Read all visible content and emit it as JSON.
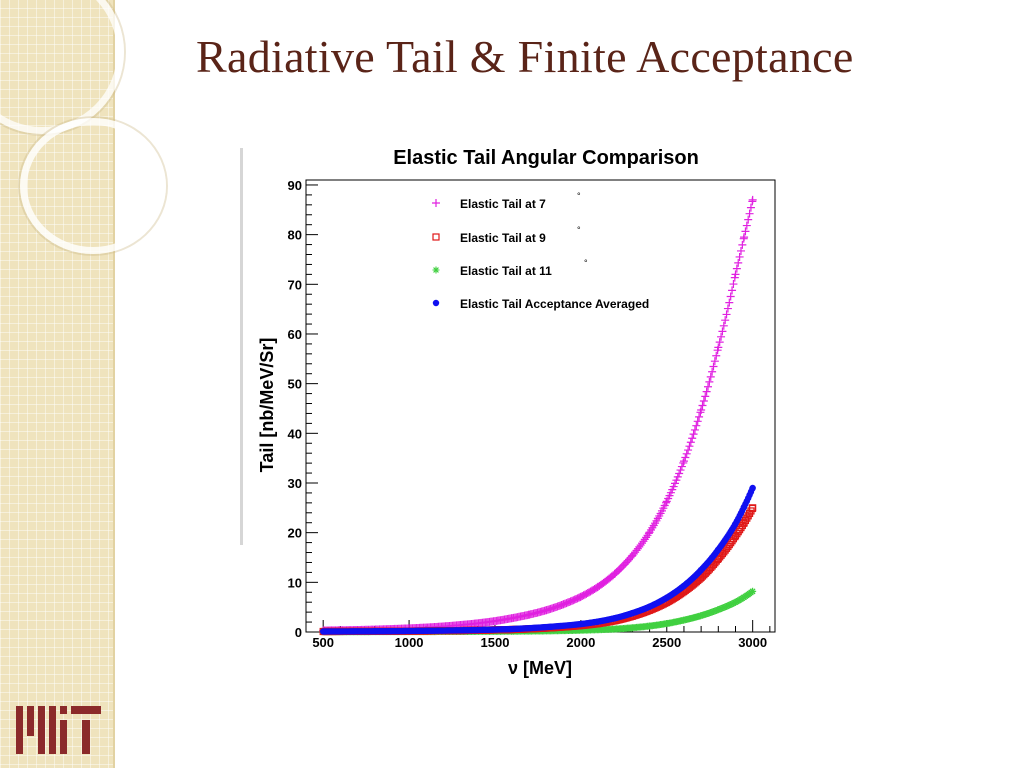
{
  "slide": {
    "title": "Radiative Tail & Finite Acceptance",
    "logo_text": "MIT"
  },
  "colors": {
    "title": "#5a2418",
    "stripe": "#efe3bd",
    "logo": "#8b2a2a"
  },
  "chart_data": {
    "type": "scatter",
    "title": "Elastic Tail Angular Comparison",
    "xlabel": "ν [MeV]",
    "ylabel": "Tail [nb/MeV/Sr]",
    "xlim": [
      400,
      3130
    ],
    "ylim": [
      0,
      91
    ],
    "xticks": [
      500,
      1000,
      1500,
      2000,
      2500,
      3000
    ],
    "yticks": [
      0,
      10,
      20,
      30,
      40,
      50,
      60,
      70,
      80,
      90
    ],
    "grid": false,
    "legend_position": "top-center",
    "series": [
      {
        "name": "Elastic Tail at 7°",
        "legend_text": "Elastic Tail at 7",
        "marker": "plus",
        "color": "#e020e0",
        "x": [
          500,
          700,
          900,
          1100,
          1300,
          1500,
          1600,
          1700,
          1800,
          1900,
          2000,
          2100,
          2200,
          2300,
          2400,
          2500,
          2600,
          2700,
          2800,
          2900,
          2950,
          3000
        ],
        "y": [
          0.3,
          0.4,
          0.6,
          0.9,
          1.4,
          2.2,
          2.8,
          3.5,
          4.4,
          5.6,
          7.1,
          9.1,
          11.8,
          15.4,
          20.1,
          26.3,
          34.4,
          44.7,
          57.3,
          72.0,
          79.5,
          87.0
        ]
      },
      {
        "name": "Elastic Tail at 9°",
        "legend_text": "Elastic Tail at 9",
        "marker": "open-square",
        "color": "#e01818",
        "x": [
          500,
          800,
          1100,
          1400,
          1600,
          1800,
          2000,
          2100,
          2200,
          2300,
          2400,
          2500,
          2600,
          2700,
          2800,
          2900,
          2950,
          3000
        ],
        "y": [
          0.1,
          0.15,
          0.2,
          0.35,
          0.5,
          0.8,
          1.3,
          1.7,
          2.3,
          3.2,
          4.4,
          6.0,
          8.2,
          11.0,
          14.8,
          19.4,
          22.0,
          25.0
        ]
      },
      {
        "name": "Elastic Tail at 11°",
        "legend_text": "Elastic Tail at 11",
        "marker": "asterisk",
        "color": "#40d040",
        "x": [
          500,
          900,
          1300,
          1600,
          1800,
          2000,
          2200,
          2300,
          2400,
          2500,
          2600,
          2700,
          2800,
          2900,
          2950,
          3000
        ],
        "y": [
          0.05,
          0.07,
          0.1,
          0.15,
          0.22,
          0.35,
          0.6,
          0.85,
          1.2,
          1.7,
          2.4,
          3.3,
          4.5,
          6.0,
          7.0,
          8.2
        ]
      },
      {
        "name": "Elastic Tail Acceptance Averaged",
        "legend_text": "Elastic Tail Acceptance Averaged",
        "marker": "filled-circle",
        "color": "#1010f0",
        "x": [
          500,
          800,
          1100,
          1400,
          1600,
          1800,
          2000,
          2100,
          2200,
          2300,
          2400,
          2500,
          2600,
          2700,
          2800,
          2900,
          2950,
          3000
        ],
        "y": [
          0.1,
          0.15,
          0.25,
          0.4,
          0.6,
          1.0,
          1.6,
          2.1,
          2.8,
          3.8,
          5.1,
          6.9,
          9.3,
          12.5,
          16.6,
          21.8,
          25.2,
          29.0
        ]
      }
    ]
  }
}
